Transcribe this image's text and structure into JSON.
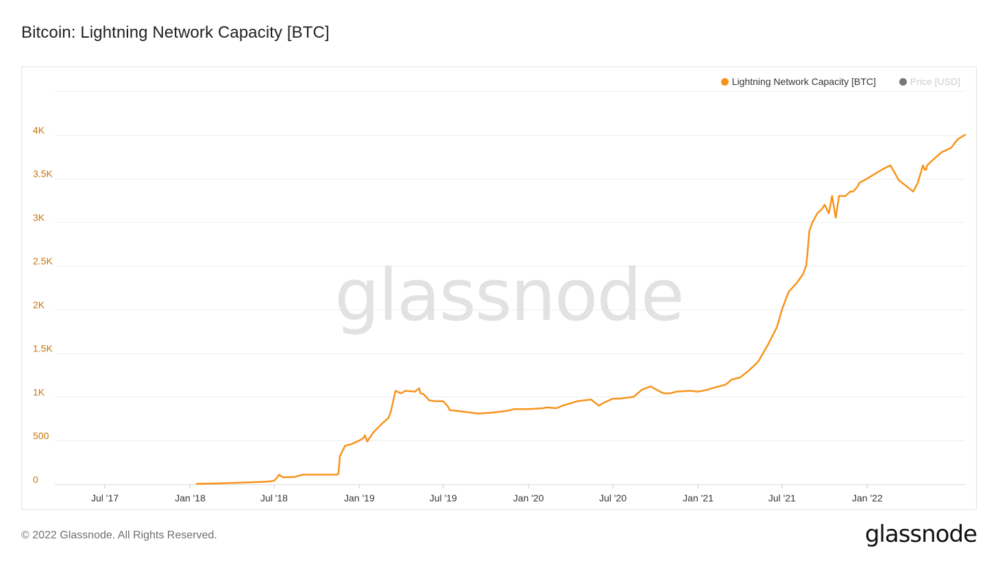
{
  "header": {
    "title": "Bitcoin: Lightning Network Capacity [BTC]"
  },
  "legend": {
    "items": [
      {
        "label": "Lightning Network Capacity [BTC]",
        "color": "#f7931a",
        "active": true
      },
      {
        "label": "Price [USD]",
        "color": "#777777",
        "active": false
      }
    ]
  },
  "watermark": "glassnode",
  "footer": {
    "copyright": "© 2022 Glassnode. All Rights Reserved.",
    "logo": "glassnode"
  },
  "chart_data": {
    "type": "line",
    "title": "Bitcoin: Lightning Network Capacity [BTC]",
    "xlabel": "",
    "ylabel": "",
    "ylim": [
      0,
      4500
    ],
    "xlim": [
      "2017-03-15",
      "2022-07-31"
    ],
    "y_ticks": [
      0,
      500,
      1000,
      1500,
      2000,
      2500,
      3000,
      3500,
      4000
    ],
    "y_tick_labels": [
      "0",
      "500",
      "1K",
      "1.5K",
      "2K",
      "2.5K",
      "3K",
      "3.5K",
      "4K"
    ],
    "x_ticks": [
      "2017-07-01",
      "2018-01-01",
      "2018-07-01",
      "2019-01-01",
      "2019-07-01",
      "2020-01-01",
      "2020-07-01",
      "2021-01-01",
      "2021-07-01",
      "2022-01-01"
    ],
    "x_tick_labels": [
      "Jul '17",
      "Jan '18",
      "Jul '18",
      "Jan '19",
      "Jul '19",
      "Jan '20",
      "Jul '20",
      "Jan '21",
      "Jul '21",
      "Jan '22"
    ],
    "grid": true,
    "legend_position": "top-right",
    "series": [
      {
        "name": "Lightning Network Capacity [BTC]",
        "color": "#f7931a",
        "x": [
          "2018-01-15",
          "2018-03-01",
          "2018-05-01",
          "2018-06-15",
          "2018-07-01",
          "2018-07-08",
          "2018-07-12",
          "2018-07-20",
          "2018-08-15",
          "2018-09-01",
          "2018-10-15",
          "2018-11-14",
          "2018-11-17",
          "2018-11-20",
          "2018-12-01",
          "2018-12-15",
          "2019-01-01",
          "2019-01-10",
          "2019-01-13",
          "2019-01-18",
          "2019-02-01",
          "2019-02-20",
          "2019-03-05",
          "2019-03-10",
          "2019-03-20",
          "2019-04-01",
          "2019-04-10",
          "2019-05-01",
          "2019-05-10",
          "2019-05-13",
          "2019-05-20",
          "2019-06-01",
          "2019-06-15",
          "2019-07-01",
          "2019-07-10",
          "2019-07-15",
          "2019-08-15",
          "2019-09-15",
          "2019-10-15",
          "2019-11-15",
          "2019-12-01",
          "2020-01-01",
          "2020-02-01",
          "2020-02-10",
          "2020-03-01",
          "2020-03-15",
          "2020-04-15",
          "2020-05-15",
          "2020-06-01",
          "2020-06-10",
          "2020-07-01",
          "2020-07-15",
          "2020-08-15",
          "2020-09-01",
          "2020-09-20",
          "2020-10-15",
          "2020-10-20",
          "2020-11-01",
          "2020-11-15",
          "2020-12-15",
          "2021-01-01",
          "2021-01-20",
          "2021-02-01",
          "2021-03-01",
          "2021-03-15",
          "2021-04-01",
          "2021-04-20",
          "2021-05-10",
          "2021-06-01",
          "2021-06-20",
          "2021-07-01",
          "2021-07-15",
          "2021-08-01",
          "2021-08-15",
          "2021-08-22",
          "2021-08-25",
          "2021-08-29",
          "2021-09-05",
          "2021-09-15",
          "2021-09-25",
          "2021-10-01",
          "2021-10-10",
          "2021-10-17",
          "2021-10-25",
          "2021-11-01",
          "2021-11-15",
          "2021-11-25",
          "2021-12-01",
          "2021-12-10",
          "2021-12-15",
          "2022-01-01",
          "2022-02-01",
          "2022-02-20",
          "2022-03-10",
          "2022-04-10",
          "2022-04-20",
          "2022-05-01",
          "2022-05-05",
          "2022-05-08",
          "2022-05-10",
          "2022-05-20",
          "2022-06-10",
          "2022-07-01",
          "2022-07-15",
          "2022-07-31"
        ],
        "y": [
          5,
          10,
          20,
          30,
          40,
          80,
          110,
          80,
          85,
          110,
          110,
          110,
          120,
          320,
          440,
          460,
          500,
          530,
          560,
          490,
          600,
          700,
          760,
          830,
          1070,
          1040,
          1070,
          1060,
          1100,
          1040,
          1030,
          960,
          950,
          950,
          900,
          850,
          830,
          810,
          820,
          840,
          860,
          860,
          870,
          880,
          870,
          900,
          950,
          970,
          900,
          930,
          980,
          980,
          1000,
          1080,
          1120,
          1050,
          1040,
          1040,
          1060,
          1070,
          1060,
          1080,
          1100,
          1140,
          1200,
          1220,
          1300,
          1400,
          1600,
          1800,
          2000,
          2200,
          2300,
          2400,
          2500,
          2650,
          2900,
          3000,
          3100,
          3150,
          3200,
          3100,
          3300,
          3050,
          3300,
          3300,
          3350,
          3350,
          3400,
          3450,
          3500,
          3600,
          3650,
          3480,
          3350,
          3450,
          3650,
          3600,
          3600,
          3650,
          3700,
          3800,
          3850,
          3950,
          4000
        ]
      }
    ]
  }
}
